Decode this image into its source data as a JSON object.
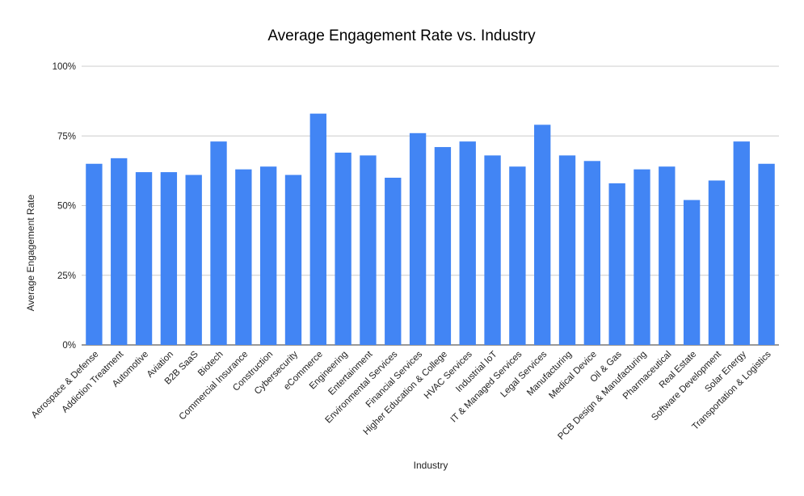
{
  "chart_data": {
    "type": "bar",
    "title": "Average Engagement Rate vs. Industry",
    "xlabel": "Industry",
    "ylabel": "Average Engagement Rate",
    "ylim": [
      0,
      100
    ],
    "yticks": [
      0,
      25,
      50,
      75,
      100
    ],
    "ytick_labels": [
      "0%",
      "25%",
      "50%",
      "75%",
      "100%"
    ],
    "grid": true,
    "bar_color": "#4285f4",
    "categories": [
      "Aerospace & Defense",
      "Addiction Treatment",
      "Automotive",
      "Aviation",
      "B2B SaaS",
      "Biotech",
      "Commercial Insurance",
      "Construction",
      "Cybersecurity",
      "eCommerce",
      "Engineering",
      "Entertainment",
      "Environmental Services",
      "Financial Services",
      "Higher Education & College",
      "HVAC Services",
      "Industrial IoT",
      "IT & Managed Services",
      "Legal Services",
      "Manufacturing",
      "Medical Device",
      "Oil & Gas",
      "PCB Design & Manufacturing",
      "Pharmaceutical",
      "Real Estate",
      "Software Development",
      "Solar Energy",
      "Transportation & Logistics"
    ],
    "values": [
      65,
      67,
      62,
      62,
      61,
      73,
      63,
      64,
      61,
      83,
      69,
      68,
      60,
      76,
      71,
      73,
      68,
      64,
      79,
      68,
      66,
      58,
      63,
      64,
      52,
      59,
      73,
      65
    ]
  }
}
